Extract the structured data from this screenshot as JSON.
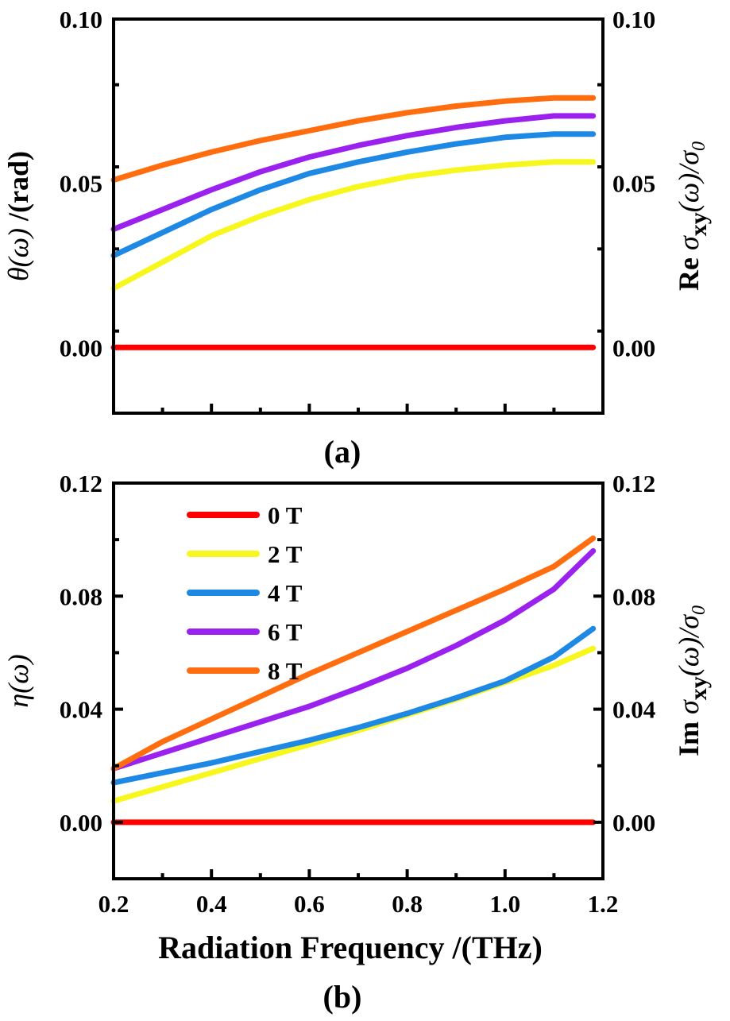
{
  "chart_data": [
    {
      "type": "line",
      "panel_label": "(a)",
      "x": [
        0.2,
        0.3,
        0.4,
        0.5,
        0.6,
        0.7,
        0.8,
        0.9,
        1.0,
        1.1,
        1.18
      ],
      "xlim": [
        0.2,
        1.2
      ],
      "ylim": [
        -0.02,
        0.1
      ],
      "yticks": [
        "0.00",
        "0.05",
        "0.10"
      ],
      "ytick_values": [
        0.0,
        0.05,
        0.1
      ],
      "ylabel_left": {
        "main": "θ(ω)",
        "unit": " /(rad)"
      },
      "ylabel_right": {
        "prefix": "Re  ",
        "main": "σ",
        "sub": "xy",
        "arg": "(ω)/σ",
        "sub2": "0"
      },
      "right_yticks": [
        "0.00",
        "0.05",
        "0.10"
      ],
      "series": [
        {
          "name": "0 T",
          "color": "#ff0000",
          "values": [
            0,
            0,
            0,
            0,
            0,
            0,
            0,
            0,
            0,
            0,
            0
          ]
        },
        {
          "name": "2 T",
          "color": "#f7f71e",
          "values": [
            0.018,
            0.026,
            0.034,
            0.04,
            0.045,
            0.049,
            0.052,
            0.054,
            0.0555,
            0.0565,
            0.0565
          ]
        },
        {
          "name": "4 T",
          "color": "#1e88e5",
          "values": [
            0.028,
            0.035,
            0.042,
            0.048,
            0.053,
            0.0565,
            0.0595,
            0.062,
            0.064,
            0.065,
            0.065
          ]
        },
        {
          "name": "6 T",
          "color": "#9b22ee",
          "values": [
            0.036,
            0.042,
            0.048,
            0.0535,
            0.058,
            0.0615,
            0.0645,
            0.067,
            0.069,
            0.0705,
            0.0705
          ]
        },
        {
          "name": "8 T",
          "color": "#ff6d0f",
          "values": [
            0.051,
            0.0555,
            0.0595,
            0.063,
            0.066,
            0.069,
            0.0715,
            0.0735,
            0.075,
            0.076,
            0.076
          ]
        }
      ]
    },
    {
      "type": "line",
      "panel_label": "(b)",
      "x": [
        0.2,
        0.3,
        0.4,
        0.5,
        0.6,
        0.7,
        0.8,
        0.9,
        1.0,
        1.1,
        1.18
      ],
      "xlim": [
        0.2,
        1.2
      ],
      "xticks": [
        "0.2",
        "0.4",
        "0.6",
        "0.8",
        "1.0",
        "1.2"
      ],
      "xtick_values": [
        0.2,
        0.4,
        0.6,
        0.8,
        1.0,
        1.2
      ],
      "xlabel": "Radiation Frequency /(THz)",
      "ylim": [
        -0.02,
        0.12
      ],
      "yticks": [
        "0.00",
        "0.04",
        "0.08",
        "0.12"
      ],
      "ytick_values": [
        0.0,
        0.04,
        0.08,
        0.12
      ],
      "ylabel_left": {
        "main": "η(ω)"
      },
      "ylabel_right": {
        "prefix": "Im  ",
        "main": "σ",
        "sub": "xy",
        "arg": "(ω)/σ",
        "sub2": "0"
      },
      "right_yticks": [
        "0.00",
        "0.04",
        "0.08",
        "0.12"
      ],
      "legend_position": "top-left",
      "series": [
        {
          "name": "0 T",
          "color": "#ff0000",
          "values": [
            0,
            0,
            0,
            0,
            0,
            0,
            0,
            0,
            0,
            0,
            0
          ]
        },
        {
          "name": "2 T",
          "color": "#f7f71e",
          "values": [
            0.0075,
            0.0125,
            0.0175,
            0.0225,
            0.0275,
            0.0325,
            0.038,
            0.0435,
            0.0495,
            0.0555,
            0.0615
          ]
        },
        {
          "name": "4 T",
          "color": "#1e88e5",
          "values": [
            0.014,
            0.0175,
            0.021,
            0.025,
            0.029,
            0.0335,
            0.0385,
            0.044,
            0.05,
            0.0585,
            0.0685
          ]
        },
        {
          "name": "6 T",
          "color": "#9b22ee",
          "values": [
            0.019,
            0.0245,
            0.03,
            0.0355,
            0.041,
            0.0475,
            0.0545,
            0.0625,
            0.0715,
            0.0825,
            0.096
          ]
        },
        {
          "name": "8 T",
          "color": "#ff6d0f",
          "values": [
            0.019,
            0.0285,
            0.0365,
            0.0445,
            0.0525,
            0.06,
            0.0675,
            0.075,
            0.0825,
            0.0905,
            0.1005
          ]
        }
      ]
    }
  ]
}
